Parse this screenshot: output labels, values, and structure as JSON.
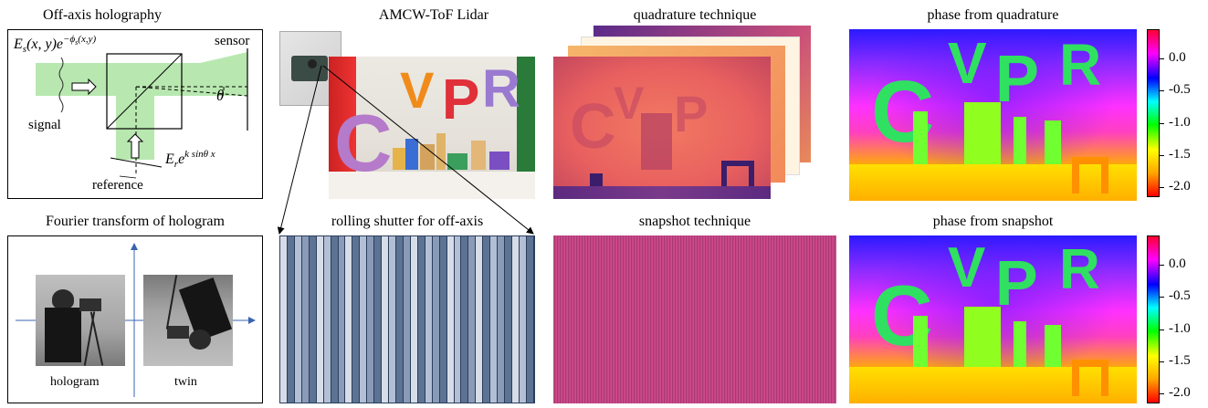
{
  "titles": {
    "offaxis": "Off-axis holography",
    "lidar": "AMCW-ToF Lidar",
    "quadrature": "quadrature technique",
    "phase_quad": "phase from quadrature",
    "fourier": "Fourier transform of hologram",
    "rolling": "rolling shutter for off-axis",
    "snapshot": "snapshot technique",
    "phase_snap": "phase from snapshot"
  },
  "offaxis": {
    "sensor": "sensor",
    "signal": "signal",
    "reference": "reference",
    "theta": "θ",
    "es_formula": "Es(x,y)e^−ϕs(x,y)",
    "er_formula": "Er e^k sinθ x"
  },
  "fourier": {
    "hologram": "hologram",
    "twin": "twin"
  },
  "lidar_scene": {
    "letters": [
      "C",
      "V",
      "P",
      "R"
    ]
  },
  "colorbar": {
    "ticks": [
      "0.0",
      "-0.5",
      "-1.0",
      "-1.5",
      "-2.0"
    ],
    "tick_values": [
      0.0,
      -0.5,
      -1.0,
      -1.5,
      -2.0
    ],
    "range": [
      -2.15,
      0.45
    ],
    "colormap": [
      "#ff0000",
      "#ffa500",
      "#ffff00",
      "#00ff00",
      "#00ffff",
      "#0000ff",
      "#ff00ff",
      "#ff0033"
    ]
  },
  "rolling_shutter": {
    "stripes": [
      "#d7dde8",
      "#5d7394",
      "#b3bfd4",
      "#8a9bb7",
      "#5d7394",
      "#d7dde8",
      "#b3bfd4",
      "#5d7394",
      "#8a9bb7",
      "#d7dde8",
      "#5d7394",
      "#b3bfd4",
      "#8a9bb7",
      "#5d7394",
      "#d7dde8",
      "#b3bfd4",
      "#5d7394",
      "#8a9bb7",
      "#d7dde8",
      "#5d7394",
      "#b3bfd4",
      "#8a9bb7",
      "#5d7394",
      "#d7dde8",
      "#b3bfd4",
      "#5d7394",
      "#8a9bb7",
      "#d7dde8",
      "#5d7394",
      "#b3bfd4",
      "#8a9bb7",
      "#5d7394",
      "#d7dde8",
      "#b3bfd4",
      "#5d7394"
    ]
  }
}
